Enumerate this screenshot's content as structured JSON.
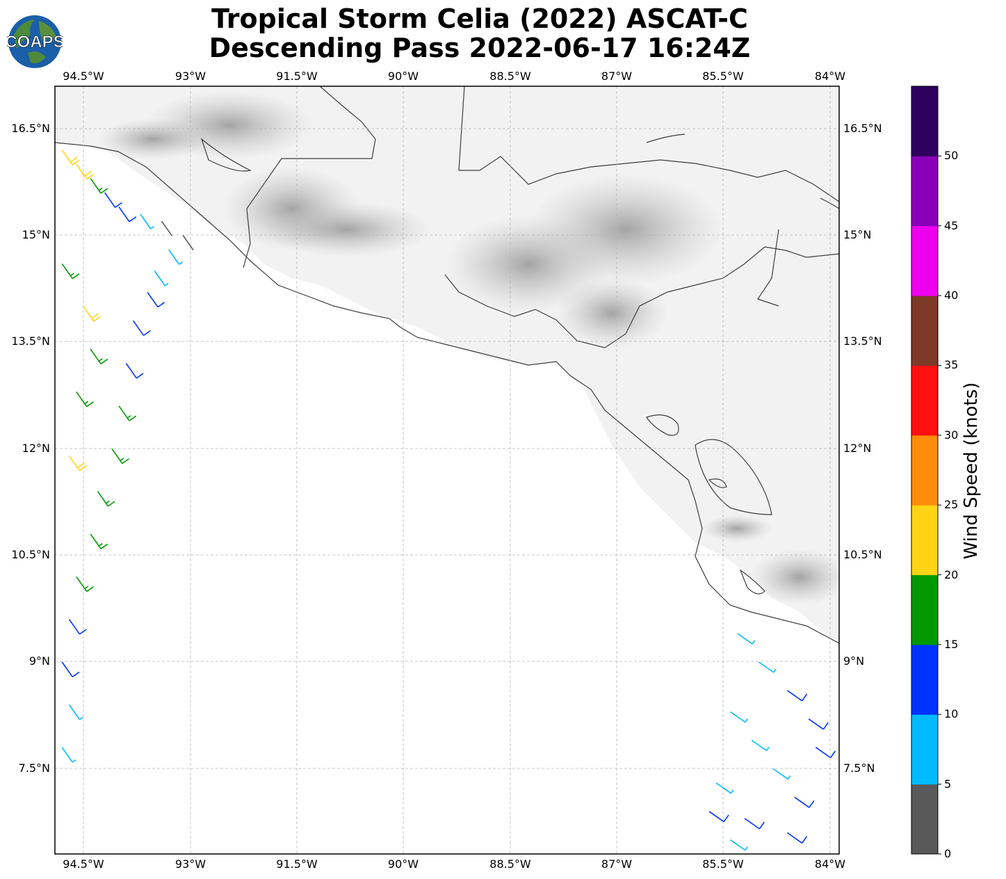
{
  "title": {
    "line1": "Tropical Storm Celia (2022) ASCAT-C",
    "line2": "Descending Pass 2022-06-17 16:24Z"
  },
  "logo": {
    "text": "COAPS"
  },
  "axes": {
    "lon_labels": [
      "94.5°W",
      "93°W",
      "91.5°W",
      "90°W",
      "88.5°W",
      "87°W",
      "85.5°W",
      "84°W"
    ],
    "lat_labels": [
      "16.5°N",
      "15°N",
      "13.5°N",
      "12°N",
      "10.5°N",
      "9°N",
      "7.5°N"
    ],
    "lon_range": [
      -94.9,
      -83.9
    ],
    "lat_range": [
      6.3,
      17.1
    ]
  },
  "colorbar": {
    "label": "Wind Speed (knots)",
    "ticks": [
      "0",
      "5",
      "10",
      "15",
      "20",
      "25",
      "30",
      "35",
      "40",
      "45",
      "50"
    ],
    "colors": [
      "#595959",
      "#00bbff",
      "#0033ff",
      "#009900",
      "#ffd414",
      "#ff8c0a",
      "#ff1010",
      "#7d3a28",
      "#ee00ee",
      "#8a00b8",
      "#2e005e"
    ]
  },
  "chart_data": {
    "type": "scatter",
    "description_variable": "wind barbs",
    "swaths": [
      {
        "name": "west swath",
        "barbs": [
          {
            "lat": 16.2,
            "lon": -94.8,
            "speed": 22
          },
          {
            "lat": 16.0,
            "lon": -94.6,
            "speed": 22
          },
          {
            "lat": 15.8,
            "lon": -94.4,
            "speed": 18
          },
          {
            "lat": 15.6,
            "lon": -94.2,
            "speed": 13
          },
          {
            "lat": 15.4,
            "lon": -94.0,
            "speed": 12
          },
          {
            "lat": 15.3,
            "lon": -93.7,
            "speed": 7
          },
          {
            "lat": 15.2,
            "lon": -93.4,
            "speed": 4
          },
          {
            "lat": 15.0,
            "lon": -93.1,
            "speed": 4
          },
          {
            "lat": 14.8,
            "lon": -93.3,
            "speed": 8
          },
          {
            "lat": 14.5,
            "lon": -93.5,
            "speed": 9
          },
          {
            "lat": 14.2,
            "lon": -93.6,
            "speed": 12
          },
          {
            "lat": 13.8,
            "lon": -93.8,
            "speed": 13
          },
          {
            "lat": 13.2,
            "lon": -93.9,
            "speed": 12
          },
          {
            "lat": 12.6,
            "lon": -94.0,
            "speed": 17
          },
          {
            "lat": 12.0,
            "lon": -94.1,
            "speed": 17
          },
          {
            "lat": 11.4,
            "lon": -94.3,
            "speed": 18
          },
          {
            "lat": 10.8,
            "lon": -94.4,
            "speed": 17
          },
          {
            "lat": 10.2,
            "lon": -94.6,
            "speed": 17
          },
          {
            "lat": 9.6,
            "lon": -94.7,
            "speed": 12
          },
          {
            "lat": 9.0,
            "lon": -94.8,
            "speed": 13
          },
          {
            "lat": 8.4,
            "lon": -94.7,
            "speed": 8
          },
          {
            "lat": 7.8,
            "lon": -94.8,
            "speed": 8
          },
          {
            "lat": 14.6,
            "lon": -94.8,
            "speed": 18
          },
          {
            "lat": 14.0,
            "lon": -94.5,
            "speed": 22
          },
          {
            "lat": 13.4,
            "lon": -94.4,
            "speed": 17
          },
          {
            "lat": 12.8,
            "lon": -94.6,
            "speed": 18
          },
          {
            "lat": 11.9,
            "lon": -94.7,
            "speed": 22
          }
        ]
      },
      {
        "name": "east swath",
        "barbs": [
          {
            "lat": 9.4,
            "lon": -85.3,
            "speed": 7
          },
          {
            "lat": 9.0,
            "lon": -85.0,
            "speed": 8
          },
          {
            "lat": 8.6,
            "lon": -84.6,
            "speed": 12
          },
          {
            "lat": 8.2,
            "lon": -84.3,
            "speed": 13
          },
          {
            "lat": 7.8,
            "lon": -84.2,
            "speed": 12
          },
          {
            "lat": 8.3,
            "lon": -85.4,
            "speed": 8
          },
          {
            "lat": 7.9,
            "lon": -85.1,
            "speed": 8
          },
          {
            "lat": 7.5,
            "lon": -84.8,
            "speed": 9
          },
          {
            "lat": 7.1,
            "lon": -84.5,
            "speed": 12
          },
          {
            "lat": 6.8,
            "lon": -85.2,
            "speed": 11
          },
          {
            "lat": 6.6,
            "lon": -84.6,
            "speed": 13
          },
          {
            "lat": 7.3,
            "lon": -85.6,
            "speed": 8
          },
          {
            "lat": 6.9,
            "lon": -85.7,
            "speed": 12
          },
          {
            "lat": 6.5,
            "lon": -85.4,
            "speed": 7
          }
        ]
      }
    ]
  }
}
